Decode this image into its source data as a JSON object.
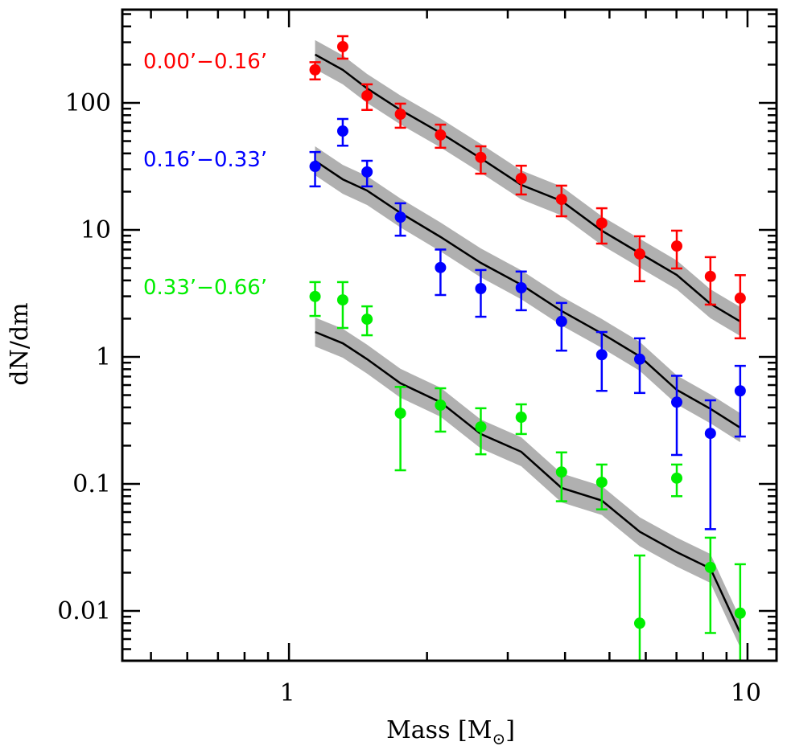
{
  "chart_data": {
    "type": "scatter",
    "title": "",
    "xlabel": "Mass [M⊙]",
    "xlabel_main": "Mass [M",
    "xlabel_sub": "⊙",
    "xlabel_close": "]",
    "ylabel": "dN/dm",
    "xscale": "log",
    "yscale": "log",
    "xlim": [
      0.433,
      11.57
    ],
    "ylim": [
      0.00405,
      542
    ],
    "grid": false,
    "x_ticks": [
      {
        "value": 1,
        "label": "1"
      },
      {
        "value": 10,
        "label": "10"
      }
    ],
    "y_ticks": [
      {
        "value": 100,
        "label": "100"
      },
      {
        "value": 10,
        "label": "10"
      },
      {
        "value": 1,
        "label": "1"
      },
      {
        "value": 0.1,
        "label": "0.1"
      },
      {
        "value": 0.01,
        "label": "0.01"
      }
    ],
    "x": [
      1.14,
      1.31,
      1.48,
      1.75,
      2.14,
      2.62,
      3.21,
      3.93,
      4.81,
      5.82,
      7.01,
      8.3,
      9.64
    ],
    "series": [
      {
        "name": "0.00’−0.16’",
        "color": "#ff0000",
        "values": [
          182,
          277,
          114,
          81.5,
          55.9,
          37.2,
          25.4,
          17.4,
          11.3,
          6.46,
          7.46,
          4.3,
          2.9
        ],
        "err_high": [
          209,
          335,
          140,
          98.6,
          67.4,
          45.5,
          32,
          22.3,
          14.8,
          8.9,
          9.86,
          6.1,
          4.4
        ],
        "err_low": [
          153,
          223,
          88,
          63.7,
          44.3,
          27.7,
          19,
          12.8,
          7.8,
          3.94,
          4.97,
          2.58,
          1.4
        ],
        "model": [
          240,
          182,
          130,
          88,
          58,
          36.6,
          22.6,
          16.9,
          9.86,
          6.55,
          4.42,
          2.62,
          1.9
        ]
      },
      {
        "name": "0.16’−0.33’",
        "color": "#0000ff",
        "values": [
          31.6,
          60,
          28.6,
          12.6,
          5.05,
          3.45,
          3.5,
          1.9,
          1.04,
          0.96,
          0.44,
          0.25,
          0.54
        ],
        "err_high": [
          41,
          74.7,
          35,
          16.2,
          7.0,
          4.83,
          4.7,
          2.66,
          1.57,
          1.4,
          0.71,
          0.455,
          0.85
        ],
        "err_low": [
          22,
          46,
          22,
          9.0,
          3.07,
          2.07,
          2.33,
          1.12,
          0.54,
          0.52,
          0.169,
          0.044,
          0.236
        ],
        "model": [
          35,
          25,
          20.4,
          13.6,
          8.8,
          5.5,
          3.7,
          2.3,
          1.53,
          1.01,
          0.55,
          0.39,
          0.277
        ]
      },
      {
        "name": "0.33’−0.66’",
        "color": "#00ee00",
        "values": [
          2.99,
          2.81,
          1.98,
          0.36,
          0.417,
          0.281,
          0.335,
          0.124,
          0.103,
          0.008,
          0.111,
          0.022,
          0.0096
        ],
        "err_high": [
          3.88,
          3.88,
          2.5,
          0.58,
          0.566,
          0.394,
          0.423,
          0.177,
          0.142,
          0.0273,
          0.142,
          0.0377,
          0.0233
        ],
        "err_low": [
          2.1,
          1.69,
          1.48,
          0.128,
          0.258,
          0.171,
          0.247,
          0.073,
          0.063,
          0.003,
          0.08,
          0.0067,
          0.003
        ],
        "model": [
          1.57,
          1.28,
          0.96,
          0.62,
          0.44,
          0.247,
          0.179,
          0.093,
          0.074,
          0.042,
          0.029,
          0.0216,
          0.0067
        ]
      }
    ],
    "model_band_factor": 1.3,
    "model_color": "#000000",
    "band_color": "#b0b0b0"
  }
}
